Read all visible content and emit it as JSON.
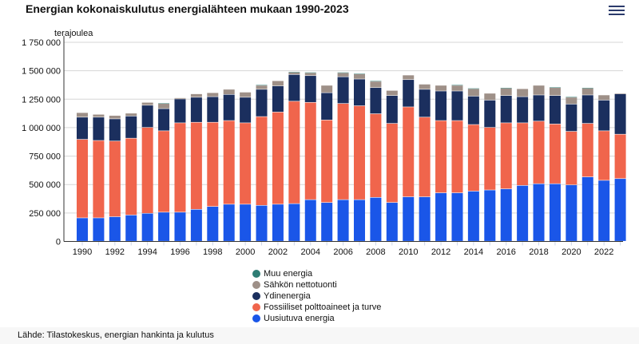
{
  "title": "Energian kokonaiskulutus energialähteen mukaan 1990-2023",
  "menu_icon": "hamburger-menu-icon",
  "source": "Lähde: Tilastokeskus, energian hankinta ja kulutus",
  "chart_data": {
    "type": "bar",
    "stacked": true,
    "title": "Energian kokonaiskulutus energialähteen mukaan 1990-2023",
    "ylabel": "terajoulea",
    "ylim": [
      0,
      1750000
    ],
    "yticks": [
      "0",
      "250 000",
      "500 000",
      "750 000",
      "1 000 000",
      "1 250 000",
      "1 500 000",
      "1 750 000"
    ],
    "ytick_values": [
      0,
      250000,
      500000,
      750000,
      1000000,
      1250000,
      1500000,
      1750000
    ],
    "grid": true,
    "legend_position": "bottom",
    "categories": [
      "1990",
      "1991",
      "1992",
      "1993",
      "1994",
      "1995",
      "1996",
      "1997",
      "1998",
      "1999",
      "2000",
      "2001",
      "2002",
      "2003",
      "2004",
      "2005",
      "2006",
      "2007",
      "2008",
      "2009",
      "2010",
      "2011",
      "2012",
      "2013",
      "2014",
      "2015",
      "2016",
      "2017",
      "2018",
      "2019",
      "2020",
      "2021",
      "2022",
      "2023"
    ],
    "xtick_labels": [
      "1990",
      "1992",
      "1994",
      "1996",
      "1998",
      "2000",
      "2002",
      "2004",
      "2006",
      "2008",
      "2010",
      "2012",
      "2014",
      "2016",
      "2018",
      "2020",
      "2022"
    ],
    "series": [
      {
        "name": "Uusiutuva energia",
        "color": "#1a56e8",
        "values": [
          205000,
          205000,
          215000,
          230000,
          245000,
          255000,
          255000,
          280000,
          305000,
          325000,
          325000,
          315000,
          325000,
          330000,
          365000,
          340000,
          365000,
          365000,
          385000,
          340000,
          390000,
          390000,
          425000,
          425000,
          440000,
          450000,
          460000,
          490000,
          505000,
          505000,
          495000,
          565000,
          535000,
          550000
        ]
      },
      {
        "name": "Fossiiliset polttoaineet ja turve",
        "color": "#f0654c",
        "values": [
          690000,
          680000,
          665000,
          675000,
          755000,
          715000,
          785000,
          765000,
          740000,
          735000,
          715000,
          780000,
          810000,
          900000,
          855000,
          725000,
          845000,
          825000,
          735000,
          695000,
          790000,
          700000,
          635000,
          635000,
          585000,
          550000,
          580000,
          550000,
          550000,
          525000,
          470000,
          470000,
          435000,
          390000
        ]
      },
      {
        "name": "Ydinenergia",
        "color": "#1b2f5e",
        "values": [
          195000,
          205000,
          195000,
          195000,
          195000,
          195000,
          210000,
          220000,
          225000,
          230000,
          225000,
          240000,
          230000,
          235000,
          235000,
          240000,
          235000,
          235000,
          230000,
          245000,
          240000,
          245000,
          260000,
          260000,
          250000,
          240000,
          240000,
          230000,
          230000,
          250000,
          240000,
          250000,
          270000,
          355000
        ]
      },
      {
        "name": "Sähkön nettotuonti",
        "color": "#9e9088",
        "values": [
          40000,
          25000,
          30000,
          25000,
          25000,
          45000,
          10000,
          30000,
          35000,
          45000,
          45000,
          35000,
          45000,
          20000,
          25000,
          65000,
          35000,
          45000,
          55000,
          45000,
          40000,
          45000,
          50000,
          50000,
          65000,
          60000,
          65000,
          70000,
          85000,
          70000,
          60000,
          60000,
          45000,
          5000
        ]
      },
      {
        "name": "Muu energia",
        "color": "#2e7d74",
        "values": [
          0,
          0,
          0,
          0,
          0,
          5000,
          0,
          0,
          0,
          0,
          0,
          5000,
          0,
          5000,
          5000,
          0,
          5000,
          5000,
          5000,
          0,
          0,
          0,
          0,
          5000,
          5000,
          0,
          5000,
          0,
          0,
          5000,
          5000,
          5000,
          0,
          0
        ]
      }
    ]
  }
}
